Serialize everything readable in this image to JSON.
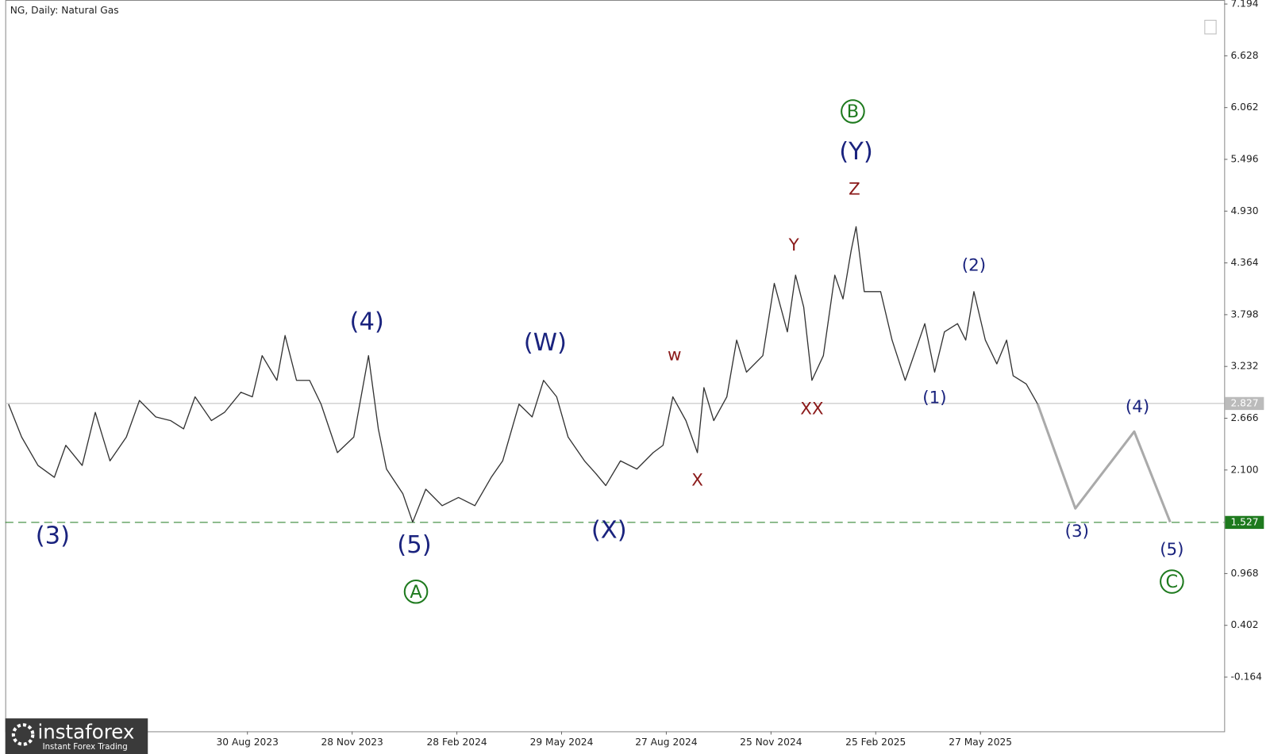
{
  "chart_data": {
    "type": "line",
    "title": "NG, Daily:  Natural Gas",
    "xlim": [
      0,
      745
    ],
    "ylim": [
      -0.757,
      7.238
    ],
    "xticks": [
      {
        "value": 148,
        "label": "30 Aug 2023"
      },
      {
        "value": 212,
        "label": "28 Nov 2023"
      },
      {
        "value": 276,
        "label": "28 Feb 2024"
      },
      {
        "value": 340,
        "label": "29 May 2024"
      },
      {
        "value": 404,
        "label": "27 Aug 2024"
      },
      {
        "value": 468,
        "label": "25 Nov 2024"
      },
      {
        "value": 532,
        "label": "25 Feb 2025"
      },
      {
        "value": 596,
        "label": "27 May 2025"
      }
    ],
    "yticks": [
      7.194,
      6.628,
      6.062,
      5.496,
      {
        "value": 4.93,
        "label": "4.930"
      },
      4.364,
      3.798,
      3.232,
      2.666,
      {
        "value": 2.1,
        "label": "2.100"
      },
      0.968,
      0.402,
      -0.164
    ],
    "series": [
      {
        "color": "#333333",
        "x": [
          2,
          10,
          20,
          30,
          37,
          47,
          55,
          64,
          74,
          82,
          92,
          101,
          109,
          116,
          126,
          134,
          144,
          151,
          157,
          166,
          171,
          178,
          186,
          193,
          203,
          213,
          222,
          228,
          233,
          243,
          249,
          257,
          267,
          277,
          287,
          297,
          304,
          314,
          322,
          329,
          337,
          344,
          354,
          361,
          367,
          376,
          386,
          396,
          402,
          408,
          416,
          423,
          427,
          433,
          441,
          447,
          453,
          463,
          470,
          478,
          483,
          488,
          493,
          500,
          507,
          512,
          517,
          520,
          525,
          535,
          542,
          550,
          557,
          562,
          568,
          574,
          582,
          587,
          592,
          599,
          606,
          612,
          616,
          624,
          631
        ],
        "values": [
          2.82,
          2.46,
          2.15,
          2.02,
          2.37,
          2.15,
          2.73,
          2.2,
          2.46,
          2.86,
          2.68,
          2.64,
          2.55,
          2.9,
          2.64,
          2.73,
          2.95,
          2.9,
          3.35,
          3.08,
          3.57,
          3.08,
          3.08,
          2.82,
          2.29,
          2.46,
          3.35,
          2.55,
          2.11,
          1.84,
          1.53,
          1.89,
          1.71,
          1.8,
          1.71,
          2.02,
          2.2,
          2.82,
          2.68,
          3.08,
          2.9,
          2.46,
          2.2,
          2.06,
          1.93,
          2.2,
          2.11,
          2.29,
          2.37,
          2.9,
          2.64,
          2.29,
          3.0,
          2.64,
          2.9,
          3.52,
          3.17,
          3.35,
          4.14,
          3.61,
          4.23,
          3.88,
          3.08,
          3.35,
          4.23,
          3.97,
          4.5,
          4.76,
          4.05,
          4.05,
          3.52,
          3.08,
          3.44,
          3.7,
          3.17,
          3.61,
          3.7,
          3.52,
          4.05,
          3.52,
          3.26,
          3.52,
          3.13,
          3.04,
          2.82
        ]
      },
      {
        "color": "#aaaaaa",
        "x": [
          631,
          654,
          690,
          712
        ],
        "values": [
          2.82,
          1.68,
          2.52,
          1.53
        ]
      }
    ],
    "price_lines": [
      {
        "value": 2.827,
        "color": "#bbbbbb",
        "dashed": false
      },
      {
        "value": 1.527,
        "color": "#1e7a1e",
        "dashed": true
      }
    ],
    "wave_labels_major": {
      "color": "#1a237e",
      "items": [
        {
          "text": "(3)",
          "x": 29,
          "y": 1.38
        },
        {
          "text": "(4)",
          "x": 221,
          "y": 3.72
        },
        {
          "text": "(5)",
          "x": 250,
          "y": 1.28
        },
        {
          "text": "(W)",
          "x": 330,
          "y": 3.49
        },
        {
          "text": "(X)",
          "x": 369,
          "y": 1.44
        },
        {
          "text": "(Y)",
          "x": 520,
          "y": 5.58
        }
      ]
    },
    "wave_labels_minor": {
      "color": "#1a237e",
      "items": [
        {
          "text": "(1)",
          "x": 568,
          "y": 2.89
        },
        {
          "text": "(2)",
          "x": 592,
          "y": 4.34
        },
        {
          "text": "(3)",
          "x": 655,
          "y": 1.43
        },
        {
          "text": "(4)",
          "x": 692,
          "y": 2.79
        },
        {
          "text": "(5)",
          "x": 713,
          "y": 1.23
        }
      ]
    },
    "wave_labels_sub": {
      "color": "#8b1a1a",
      "items": [
        {
          "text": "w",
          "x": 409,
          "y": 3.36
        },
        {
          "text": "X",
          "x": 423,
          "y": 1.99
        },
        {
          "text": "Y",
          "x": 482,
          "y": 4.56
        },
        {
          "text": "XX",
          "x": 493,
          "y": 2.77
        },
        {
          "text": "Z",
          "x": 519,
          "y": 5.17
        }
      ]
    },
    "circled_labels": {
      "color": "#1e7a1e",
      "items": [
        {
          "text": "A",
          "x": 251,
          "y": 0.77
        },
        {
          "text": "B",
          "x": 518,
          "y": 6.02
        },
        {
          "text": "C",
          "x": 713,
          "y": 0.88
        }
      ]
    }
  },
  "logo": {
    "name": "instaforex",
    "tagline": "Instant Forex Trading"
  }
}
